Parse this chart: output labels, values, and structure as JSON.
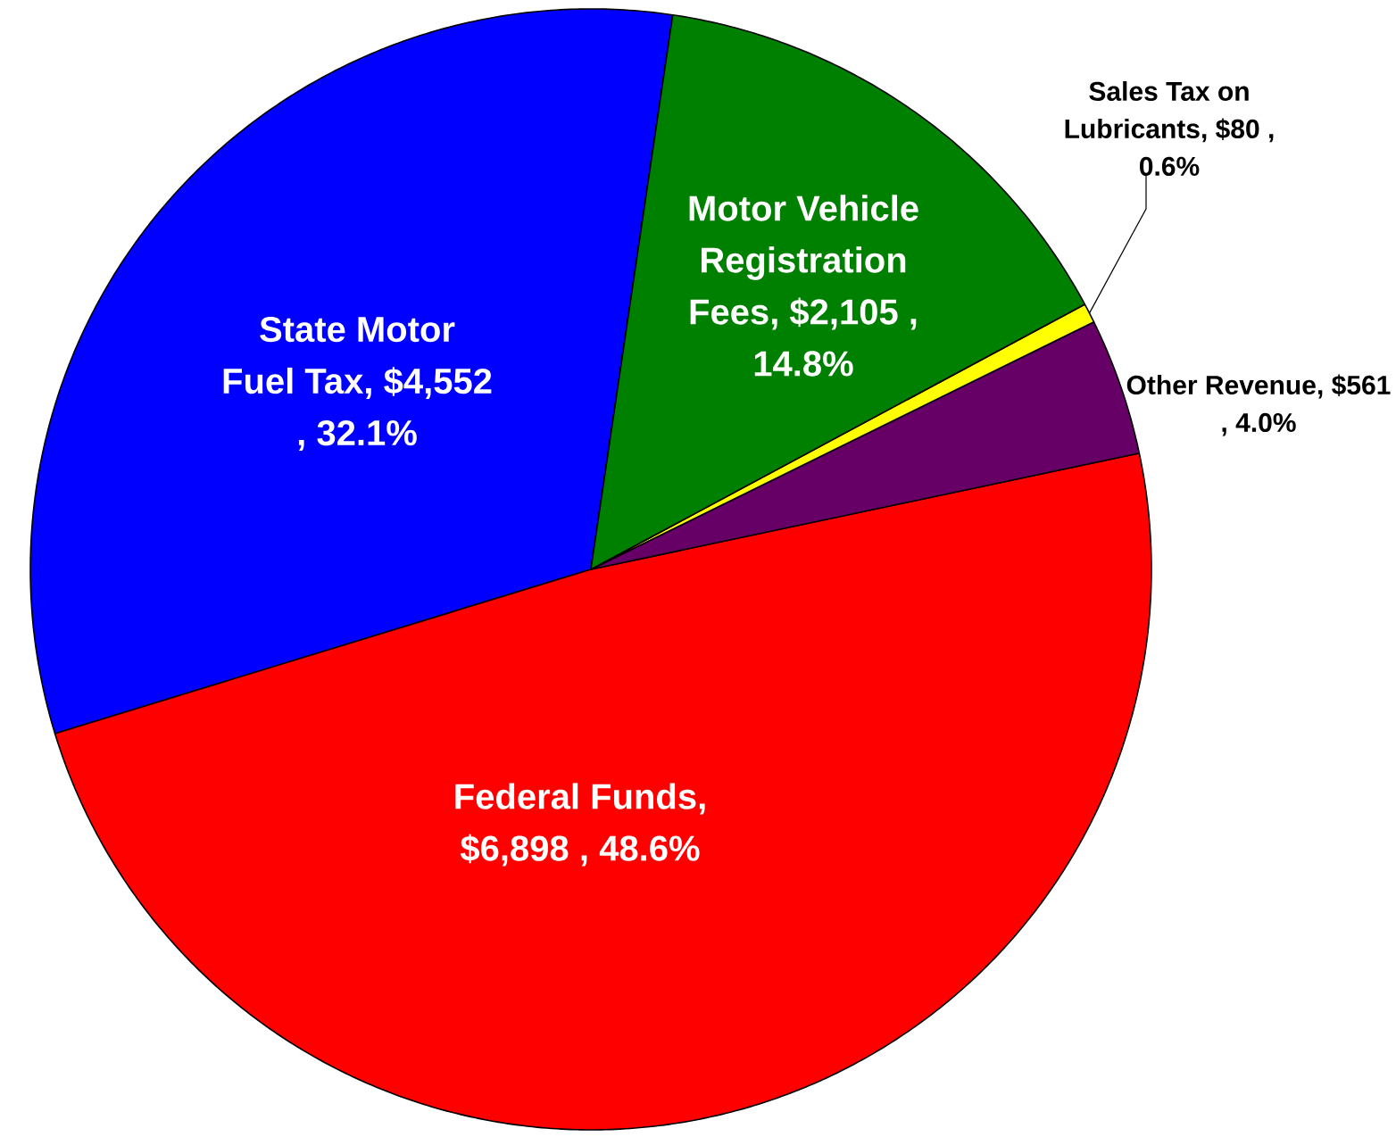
{
  "chart_data": {
    "type": "pie",
    "categories": [
      "State Motor Fuel Tax",
      "Federal Funds",
      "Other Revenue",
      "Sales Tax on Lubricants",
      "Motor Vehicle Registration Fees"
    ],
    "values": [
      4552,
      6898,
      561,
      80,
      2105
    ],
    "value_labels": [
      ", $4,552 , 32.1%",
      ", $6,898 , 48.6%",
      ", $561 , 4.0%",
      ", $80 , 0.6%",
      ", $2,105 , 14.8%"
    ],
    "colors": [
      "#0000ff",
      "#ff0000",
      "#660066",
      "#ffff00",
      "#008000"
    ]
  }
}
